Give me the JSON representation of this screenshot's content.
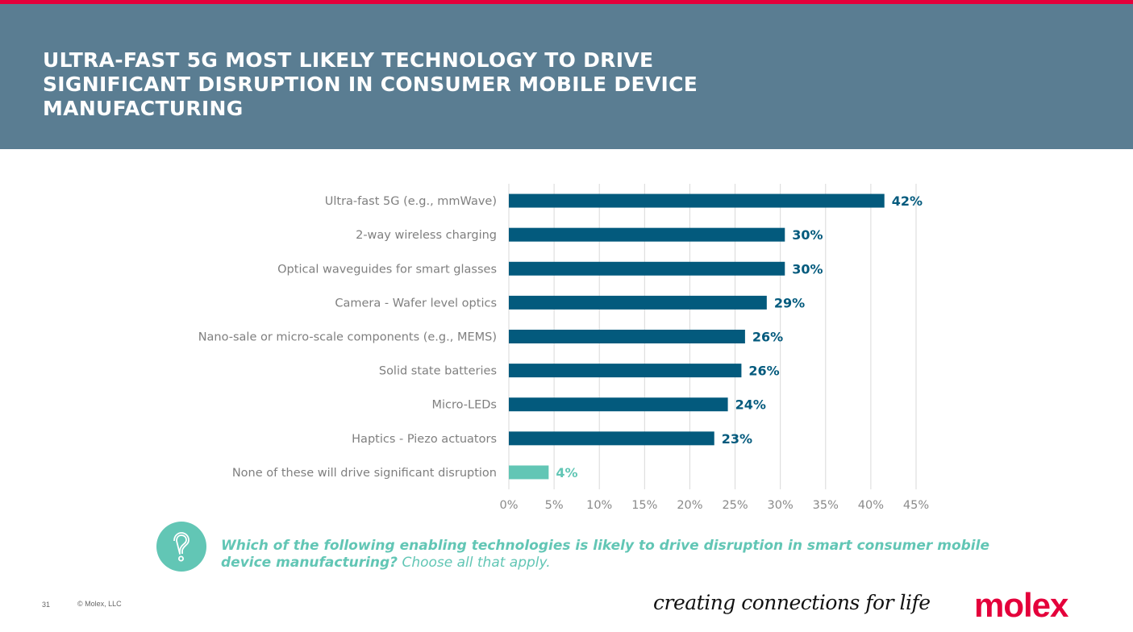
{
  "header": {
    "title": "ULTRA-FAST 5G MOST LIKELY TECHNOLOGY TO DRIVE SIGNIFICANT DISRUPTION IN CONSUMER MOBILE DEVICE MANUFACTURING"
  },
  "colors": {
    "accent_red": "#e4003b",
    "header_bg": "#5a7d92",
    "bar_primary": "#035a7d",
    "bar_secondary": "#62c6b5"
  },
  "chart_data": {
    "type": "bar",
    "orientation": "horizontal",
    "title": "",
    "xlabel": "",
    "ylabel": "",
    "categories": [
      "Ultra-fast 5G (e.g., mmWave)",
      "2-way wireless charging",
      "Optical waveguides for smart glasses",
      "Camera - Wafer level optics",
      "Nano-sale or micro-scale components (e.g., MEMS)",
      "Solid state batteries",
      "Micro-LEDs",
      "Haptics - Piezo actuators",
      "None of these will drive significant disruption"
    ],
    "values": [
      41.5,
      30.5,
      30.5,
      28.5,
      26.1,
      25.7,
      24.2,
      22.7,
      4.4
    ],
    "data_labels": [
      "42%",
      "30%",
      "30%",
      "29%",
      "26%",
      "26%",
      "24%",
      "23%",
      "4%"
    ],
    "highlight": [
      false,
      false,
      false,
      false,
      false,
      false,
      false,
      false,
      true
    ],
    "xlim": [
      0,
      45
    ],
    "xticks": [
      0,
      5,
      10,
      15,
      20,
      25,
      30,
      35,
      40,
      45
    ],
    "xtick_labels": [
      "0%",
      "5%",
      "10%",
      "15%",
      "20%",
      "25%",
      "30%",
      "35%",
      "40%",
      "45%"
    ],
    "grid": "vertical",
    "legend": "none"
  },
  "question": {
    "icon": "question-mark-icon",
    "bold_text": "Which of the following enabling technologies is likely to drive disruption in smart consumer mobile device manufacturing?",
    "regular_text": " Choose all that apply."
  },
  "footer": {
    "page_number": "31",
    "copyright": "© Molex, LLC",
    "tagline": "creating connections for life",
    "logo": "molex"
  }
}
